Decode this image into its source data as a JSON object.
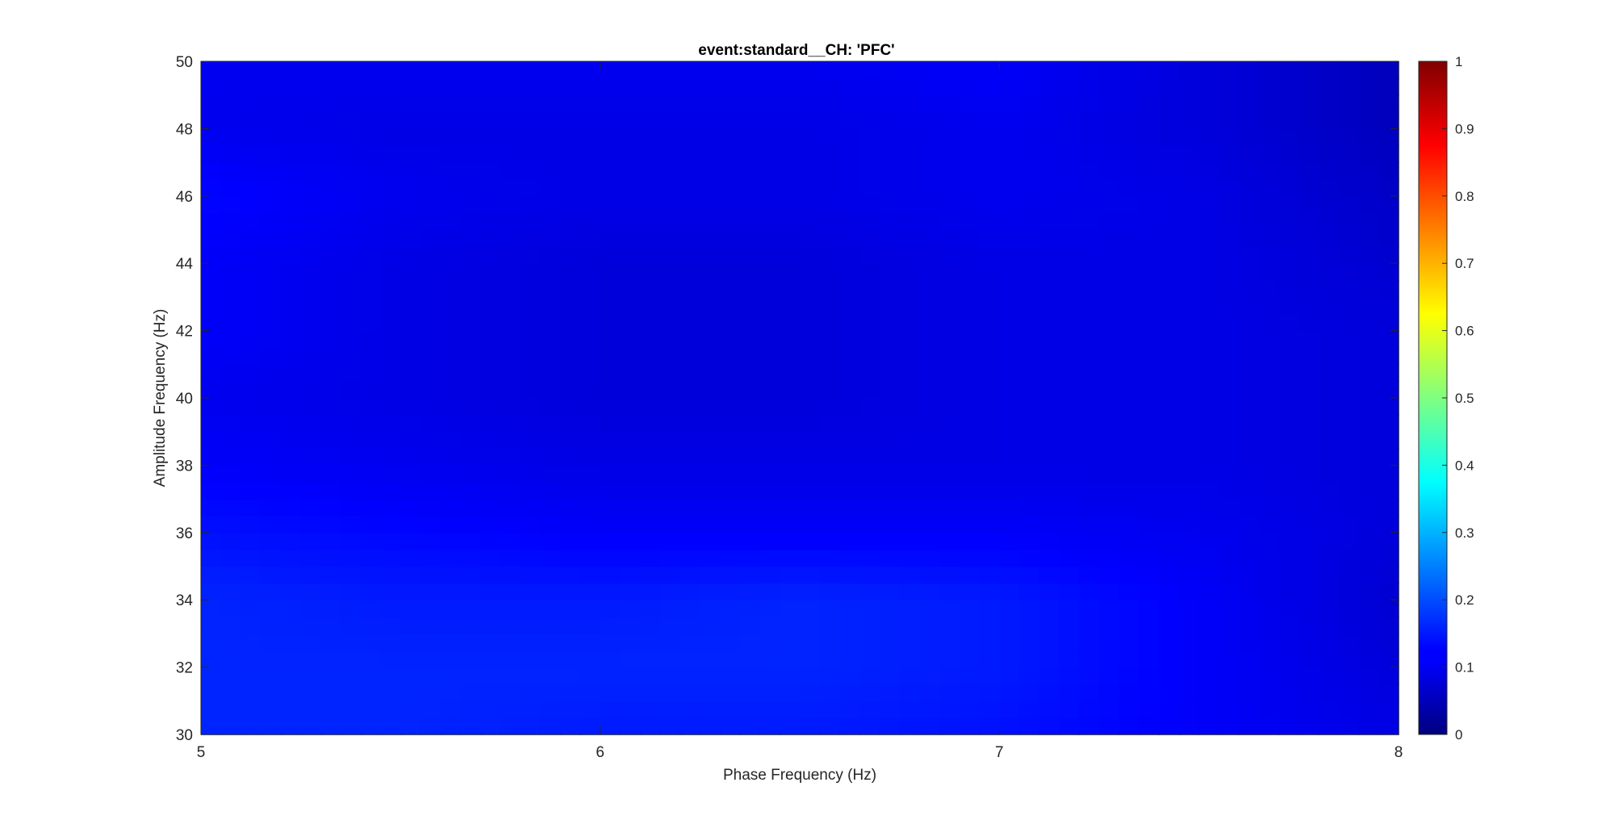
{
  "chart_data": {
    "type": "heatmap",
    "title": "event:standard__CH: 'PFC'",
    "xlabel": "Phase Frequency (Hz)",
    "ylabel": "Amplitude Frequency (Hz)",
    "xlim": [
      5,
      8
    ],
    "ylim": [
      30,
      50
    ],
    "x_ticks": [
      5,
      6,
      7,
      8
    ],
    "y_ticks": [
      30,
      32,
      34,
      36,
      38,
      40,
      42,
      44,
      46,
      48,
      50
    ],
    "colormap": "jet",
    "clim": [
      0,
      1
    ],
    "colorbar_ticks": [
      "0",
      "0.1",
      "0.2",
      "0.3",
      "0.4",
      "0.5",
      "0.6",
      "0.7",
      "0.8",
      "0.9",
      "1"
    ],
    "x": [
      5,
      5.5,
      6,
      6.5,
      7,
      7.5,
      8
    ],
    "y": [
      30,
      32,
      34,
      36,
      38,
      40,
      42,
      44,
      46,
      48,
      50
    ],
    "z": [
      [
        0.16,
        0.16,
        0.15,
        0.15,
        0.14,
        0.12,
        0.1
      ],
      [
        0.16,
        0.16,
        0.16,
        0.16,
        0.15,
        0.12,
        0.09
      ],
      [
        0.16,
        0.15,
        0.15,
        0.16,
        0.15,
        0.12,
        0.08
      ],
      [
        0.14,
        0.13,
        0.12,
        0.12,
        0.12,
        0.11,
        0.09
      ],
      [
        0.12,
        0.11,
        0.1,
        0.1,
        0.1,
        0.1,
        0.09
      ],
      [
        0.11,
        0.1,
        0.09,
        0.09,
        0.1,
        0.1,
        0.09
      ],
      [
        0.12,
        0.1,
        0.09,
        0.09,
        0.1,
        0.1,
        0.09
      ],
      [
        0.12,
        0.1,
        0.09,
        0.09,
        0.1,
        0.1,
        0.08
      ],
      [
        0.13,
        0.11,
        0.1,
        0.1,
        0.11,
        0.1,
        0.07
      ],
      [
        0.11,
        0.1,
        0.1,
        0.1,
        0.11,
        0.09,
        0.06
      ],
      [
        0.11,
        0.11,
        0.11,
        0.11,
        0.12,
        0.09,
        0.06
      ]
    ]
  }
}
